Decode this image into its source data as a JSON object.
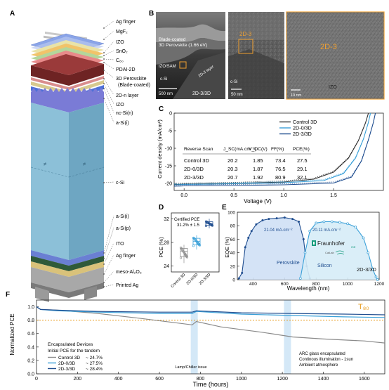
{
  "panels": {
    "A": "A",
    "B": "B",
    "C": "C",
    "D": "D",
    "E": "E",
    "F": "F"
  },
  "stack_labels": [
    "Ag finger",
    "MgF₂",
    "IZO",
    "SnO₂",
    "C₆₀",
    "PDAI-2D",
    "3D Perovskite",
    "(Blade-coated)",
    "2D-n layer",
    "IZO",
    "nc-Si(n)",
    "a-Si(i)",
    "c-Si",
    "a-Si(i)",
    "a-Si(p)",
    "ITO",
    "Ag finger",
    "meso-Al₂O₃",
    "Printed Ag"
  ],
  "sem": {
    "b1_title_1": "Blade-coated",
    "b1_title_2": "3D Perovskite (1.66 eV)",
    "b1_izo": "IZO/SAM",
    "b1_layer": "2D-3 layer",
    "b1_csi": "c-Si",
    "b1_scale": "500 nm",
    "b1_bottom": "2D-3/3D",
    "b2_label": "2D-3",
    "b2_csi": "c-Si",
    "b2_scale": "50 nm",
    "b3_label": "2D-3",
    "b3_izo": "IZO",
    "b3_scale": "10 nm"
  },
  "jv": {
    "ylabel": "Current density (mA/cm²)",
    "xlabel": "Voltage (V)",
    "table_headers": [
      "Reverse Scan",
      "J_SC(mA.cm⁻²)",
      "V_OC(V)",
      "FF(%)",
      "PCE(%)"
    ],
    "table_rows": [
      [
        "Control 3D",
        "20.2",
        "1.85",
        "73.4",
        "27.5"
      ],
      [
        "2D-0/3D",
        "20.3",
        "1.87",
        "76.5",
        "29.1"
      ],
      [
        "2D-3/3D",
        "20.7",
        "1.92",
        "80.9",
        "32.1"
      ]
    ]
  },
  "box": {
    "ylabel": "PCE (%)",
    "certified_1": "Certified PCE",
    "certified_2": "31.2% ± 1.5"
  },
  "eqe": {
    "ylabel": "EQE (%)",
    "xlabel": "Wavelength (nm)",
    "jsc_top": "21.04 mA.cm⁻²",
    "jsc_bottom": "20.11 mA.cm⁻²",
    "perovskite": "Perovskite",
    "silicon": "Silicon",
    "fraunhofer": "Fraunhofer",
    "ise": "ISE",
    "callab": "CalLab",
    "device": "2D-3/3D"
  },
  "stab": {
    "ylabel": "Normalized PCE",
    "xlabel": "Time (hours)",
    "t80": "T₈₀",
    "encap_1": "Encapsulated Devices",
    "encap_2": "Initial PCE for the tandem",
    "legend_values": [
      "~ 24.7%",
      "~ 27.5%",
      "~ 28.4%"
    ],
    "lamp": "Lamp/Chiller issue",
    "cond_1": "ARC glass encapsulated",
    "cond_2": "Continous illumination - 1sun",
    "cond_3": "Ambient atmosphere"
  },
  "chart_data": [
    {
      "type": "line",
      "panel": "C",
      "xlabel": "Voltage (V)",
      "ylabel": "Current density (mA/cm²)",
      "xlim": [
        -0.1,
        2.0
      ],
      "ylim": [
        -22,
        0
      ],
      "xticks": [
        0.0,
        0.5,
        1.0,
        1.5
      ],
      "yticks": [
        -20,
        -15,
        -10,
        -5,
        0
      ],
      "legend": "top-right",
      "series": [
        {
          "name": "Control 3D",
          "color": "#333333",
          "voc": 1.85,
          "jsc": 20.2,
          "knee": 1.35,
          "x": [
            -0.1,
            0,
            0.5,
            1.0,
            1.3,
            1.5,
            1.65,
            1.75,
            1.82,
            1.85
          ],
          "y": [
            -20.3,
            -20.2,
            -20.0,
            -19.6,
            -18.8,
            -16.8,
            -12.8,
            -7.8,
            -2.8,
            0
          ]
        },
        {
          "name": "2D-0/3D",
          "color": "#3aa0d8",
          "voc": 1.87,
          "jsc": 20.3,
          "knee": 1.5,
          "x": [
            -0.1,
            0,
            0.5,
            1.0,
            1.4,
            1.6,
            1.72,
            1.8,
            1.85,
            1.87
          ],
          "y": [
            -20.4,
            -20.3,
            -20.1,
            -19.8,
            -19.2,
            -17.2,
            -12.8,
            -7.4,
            -2.6,
            0
          ]
        },
        {
          "name": "2D-3/3D",
          "color": "#1f4d8f",
          "voc": 1.92,
          "jsc": 20.7,
          "knee": 1.6,
          "x": [
            -0.1,
            0,
            0.5,
            1.0,
            1.5,
            1.68,
            1.78,
            1.85,
            1.9,
            1.92
          ],
          "y": [
            -20.8,
            -20.7,
            -20.6,
            -20.4,
            -19.9,
            -18.2,
            -13.6,
            -7.6,
            -2.6,
            0
          ]
        }
      ]
    },
    {
      "type": "box",
      "panel": "D",
      "ylabel": "PCE (%)",
      "ylim": [
        23,
        33
      ],
      "yticks": [
        24,
        28,
        32
      ],
      "categories": [
        "Control 3D",
        "2D-0/3D",
        "2D-3/3D"
      ],
      "series": [
        {
          "name": "Control 3D",
          "color": "#8e8e8e",
          "min": 24.5,
          "q1": 25.6,
          "median": 26.5,
          "q3": 27.0,
          "max": 27.6
        },
        {
          "name": "2D-0/3D",
          "color": "#3aa0d8",
          "min": 26.8,
          "q1": 27.6,
          "median": 28.2,
          "q3": 28.7,
          "max": 29.2
        },
        {
          "name": "2D-3/3D",
          "color": "#1f4d8f",
          "min": 30.4,
          "q1": 30.9,
          "median": 31.2,
          "q3": 31.5,
          "max": 32.0
        }
      ]
    },
    {
      "type": "area",
      "panel": "E",
      "xlabel": "Wavelength (nm)",
      "ylabel": "EQE (%)",
      "xlim": [
        300,
        1200
      ],
      "ylim": [
        0,
        100
      ],
      "xticks": [
        400,
        600,
        800,
        1000,
        1200
      ],
      "yticks": [
        0,
        20,
        40,
        60,
        80,
        100
      ],
      "series": [
        {
          "name": "Perovskite",
          "color": "#1f4d8f",
          "x": [
            310,
            330,
            350,
            370,
            390,
            420,
            460,
            500,
            550,
            600,
            650,
            690,
            720,
            740,
            760
          ],
          "y": [
            2,
            10,
            48,
            62,
            72,
            82,
            88,
            90,
            91,
            92,
            90,
            86,
            60,
            20,
            2
          ]
        },
        {
          "name": "Silicon",
          "color": "#3aa0d8",
          "x": [
            700,
            730,
            760,
            800,
            850,
            900,
            950,
            1000,
            1050,
            1100,
            1130,
            1160,
            1180,
            1190
          ],
          "y": [
            2,
            40,
            72,
            84,
            86,
            86,
            85,
            83,
            78,
            62,
            40,
            15,
            4,
            0
          ]
        }
      ]
    },
    {
      "type": "line",
      "panel": "F",
      "xlabel": "Time (hours)",
      "ylabel": "Normalized PCE",
      "xlim": [
        0,
        1700
      ],
      "ylim": [
        0.0,
        1.1
      ],
      "xticks": [
        0,
        200,
        400,
        600,
        800,
        1000,
        1200,
        1400,
        1600
      ],
      "yticks": [
        0.0,
        0.2,
        0.4,
        0.6,
        0.8,
        1.0
      ],
      "t80_value": 0.8,
      "events": [
        770,
        1225
      ],
      "series": [
        {
          "name": "Control 3D",
          "color": "#8a8a8a",
          "x": [
            0,
            20,
            100,
            300,
            500,
            760,
            780,
            900,
            1100,
            1250,
            1400,
            1600,
            1700
          ],
          "y": [
            1.0,
            0.96,
            0.95,
            0.9,
            0.83,
            0.73,
            0.78,
            0.7,
            0.62,
            0.55,
            0.52,
            0.49,
            0.46
          ]
        },
        {
          "name": "2D-0/3D",
          "color": "#3aa0d8",
          "x": [
            0,
            20,
            100,
            300,
            600,
            760,
            780,
            1000,
            1250,
            1500,
            1700
          ],
          "y": [
            1.0,
            0.96,
            0.94,
            0.92,
            0.9,
            0.9,
            0.93,
            0.89,
            0.87,
            0.85,
            0.84
          ]
        },
        {
          "name": "2D-3/3D",
          "color": "#1f4d8f",
          "x": [
            0,
            20,
            100,
            300,
            600,
            760,
            780,
            1000,
            1250,
            1500,
            1700
          ],
          "y": [
            1.0,
            0.96,
            0.95,
            0.93,
            0.92,
            0.92,
            0.94,
            0.91,
            0.9,
            0.89,
            0.88
          ]
        }
      ]
    }
  ]
}
